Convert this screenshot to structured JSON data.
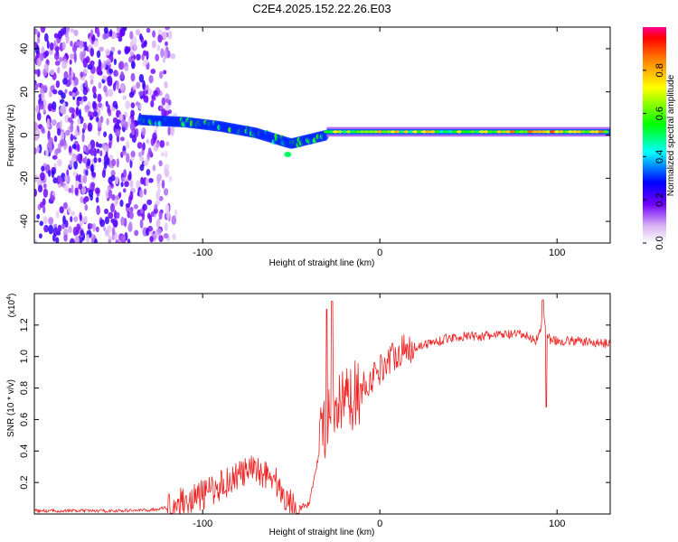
{
  "title": "C2E4.2025.152.22.26.E03",
  "chart_data": [
    {
      "type": "heatmap",
      "title": "C2E4.2025.152.22.26.E03",
      "xlabel": "Height of straight line (km)",
      "ylabel": "Frequency (Hz)",
      "xlim": [
        -195,
        130
      ],
      "ylim": [
        -50,
        50
      ],
      "xticks": [
        -100,
        0,
        100
      ],
      "yticks": [
        -40,
        -20,
        0,
        20,
        40
      ],
      "colorbar": {
        "label": "Normalized spectral amplitude",
        "range": [
          0,
          1
        ],
        "ticks": [
          "0.0",
          "0.2",
          "0.4",
          "0.6",
          "0.8"
        ],
        "tick_values": [
          0,
          0.2,
          0.4,
          0.6,
          0.8
        ],
        "colors": [
          "#ffffff",
          "#e6ccf7",
          "#8000ff",
          "#0000ff",
          "#00ffff",
          "#00ff00",
          "#ffff00",
          "#ff8000",
          "#ff0000",
          "#ff0080"
        ]
      },
      "features": [
        {
          "description": "broadband noise region",
          "x_range": [
            -195,
            -115
          ],
          "freq_range": [
            -50,
            50
          ],
          "amplitude": 0.2
        },
        {
          "description": "descending signal trace",
          "x_points": [
            -135,
            -110,
            -90,
            -70,
            -50,
            -40,
            -30
          ],
          "freq_points": [
            7,
            6,
            4,
            1,
            -4,
            -2,
            0
          ]
        },
        {
          "description": "narrow-band signal trace",
          "x_range": [
            -30,
            130
          ],
          "freq": 1.5,
          "amplitude": 0.75
        }
      ]
    },
    {
      "type": "line",
      "xlabel": "Height of straight line (km)",
      "ylabel": "SNR (10 * v/v)",
      "multiplier": "(x10",
      "multiplier_exp": "4",
      "multiplier_close": ")",
      "color": "#ee2222",
      "xlim": [
        -195,
        130
      ],
      "ylim": [
        0,
        1.4
      ],
      "xticks": [
        -100,
        0,
        100
      ],
      "yticks": [
        0.2,
        0.4,
        0.6,
        0.8,
        1.0,
        1.2
      ],
      "ytick_labels": [
        "0.2",
        "0.4",
        "0.6",
        "0.8",
        "1.0",
        "1.2"
      ],
      "series": [
        {
          "name": "SNR",
          "x": [
            -195,
            -170,
            -150,
            -130,
            -120,
            -110,
            -100,
            -90,
            -80,
            -70,
            -60,
            -55,
            -50,
            -45,
            -40,
            -35,
            -32,
            -30,
            -28,
            -25,
            -22,
            -20,
            -15,
            -10,
            -5,
            0,
            5,
            10,
            20,
            30,
            40,
            50,
            60,
            70,
            80,
            85,
            88,
            90,
            92,
            94,
            96,
            100,
            110,
            120,
            130
          ],
          "y": [
            0.02,
            0.02,
            0.02,
            0.025,
            0.04,
            0.08,
            0.12,
            0.18,
            0.25,
            0.28,
            0.24,
            0.12,
            0.06,
            0.04,
            0.06,
            0.35,
            0.6,
            0.55,
            0.65,
            0.6,
            0.7,
            0.7,
            0.75,
            0.8,
            0.85,
            0.92,
            0.98,
            1.03,
            1.06,
            1.09,
            1.12,
            1.13,
            1.13,
            1.14,
            1.14,
            1.12,
            1.1,
            1.15,
            1.25,
            1.18,
            1.1,
            1.1,
            1.1,
            1.09,
            1.08
          ]
        }
      ],
      "noise_amplitude": [
        {
          "x_range": [
            -195,
            -120
          ],
          "amp": 0.01
        },
        {
          "x_range": [
            -120,
            -45
          ],
          "amp": 0.1
        },
        {
          "x_range": [
            -45,
            -35
          ],
          "amp": 0.02
        },
        {
          "x_range": [
            -35,
            -10
          ],
          "amp": 0.22
        },
        {
          "x_range": [
            -10,
            20
          ],
          "amp": 0.1
        },
        {
          "x_range": [
            20,
            130
          ],
          "amp": 0.03
        }
      ],
      "features": [
        {
          "description": "spike",
          "x": -27,
          "y": 1.35
        },
        {
          "description": "spike",
          "x": -30,
          "y": 1.3
        },
        {
          "description": "spike",
          "x": 92,
          "y": 1.36
        },
        {
          "description": "dip",
          "x": 94,
          "y": 0.68
        }
      ]
    }
  ]
}
